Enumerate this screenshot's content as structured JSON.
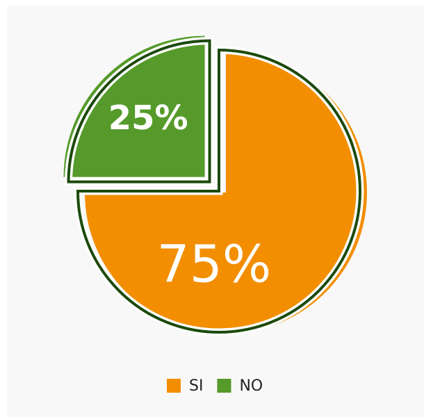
{
  "chart_data": {
    "type": "pie",
    "categories": [
      "SI",
      "NO"
    ],
    "values": [
      75,
      25
    ],
    "value_labels": [
      "75%",
      "25%"
    ],
    "colors": [
      "#f28e00",
      "#559a2a"
    ],
    "explode": [
      false,
      true
    ],
    "legend": "bottom"
  }
}
